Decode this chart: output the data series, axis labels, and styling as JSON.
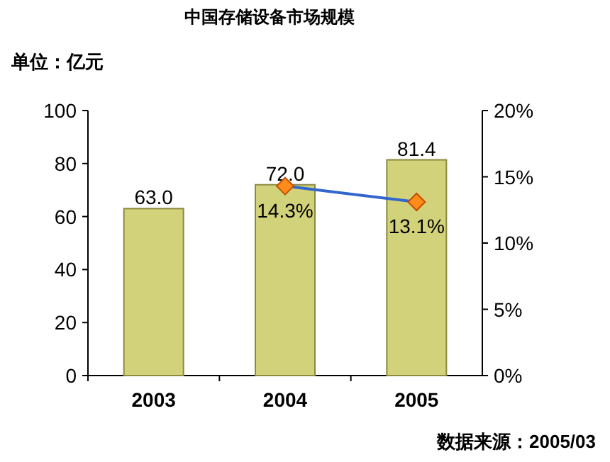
{
  "chart_data": {
    "type": "bar",
    "title": "中国存储设备市场规模",
    "annotations": [
      "单位：亿元",
      "数据来源：2005/03"
    ],
    "categories": [
      "2003",
      "2004",
      "2005"
    ],
    "series": [
      {
        "color": "#d2d27a",
        "values": [
          63.0,
          72.0,
          81.4
        ],
        "value_labels": [
          "63.0",
          "72.0",
          "81.4"
        ]
      },
      {
        "type": "line",
        "axis": "y2",
        "color": "#3366cc",
        "marker": "diamond",
        "values": [
          null,
          14.3,
          13.1
        ],
        "value_labels": [
          null,
          "14.3%",
          "13.1%"
        ]
      }
    ],
    "ylim": [
      0,
      100
    ],
    "yticks": [
      0,
      20,
      40,
      60,
      80,
      100
    ],
    "y2lim": [
      0,
      20
    ],
    "y2ticks": [
      {
        "value": 0,
        "label": "0%"
      },
      {
        "value": 5,
        "label": "5%"
      },
      {
        "value": 10,
        "label": "10%"
      },
      {
        "value": 15,
        "label": "15%"
      },
      {
        "value": 20,
        "label": "20%"
      }
    ]
  }
}
